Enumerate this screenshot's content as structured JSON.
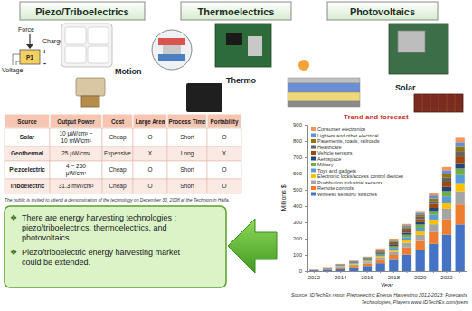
{
  "header": {
    "sections": [
      {
        "title": "Piezo/Triboelectrics"
      },
      {
        "title": "Thermoelectrics"
      },
      {
        "title": "Photovoltaics"
      }
    ]
  },
  "piezo_diagram": {
    "force": "Force",
    "charges": "Charges",
    "voltage": "Voltage",
    "element": "P1",
    "plus": "+",
    "minus": "-"
  },
  "image_labels": {
    "motion": "Motion",
    "thermo": "Thermo",
    "solar": "Solar"
  },
  "table": {
    "columns": [
      "Source",
      "Output Power",
      "Cost",
      "Large Area",
      "Process Time",
      "Portability"
    ],
    "rows": [
      [
        "Solar",
        [
          "10 μW/cm² ~",
          "10 mW/cm²"
        ],
        "Cheap",
        "O",
        "Short",
        "O"
      ],
      [
        "Geothermal",
        "25 μW/cm²",
        "Expensive",
        "X",
        "Long",
        "X"
      ],
      [
        "Piezoelectric",
        [
          "4 ~ 250",
          "μW/cm²"
        ],
        "Cheap",
        "O",
        "Short",
        "O"
      ],
      [
        "Triboelectric",
        "31.3 mW/cm²",
        "Cheap",
        "O",
        "Short",
        "O"
      ]
    ]
  },
  "note": "The public is invited to attend a demonstration of the technology on December 30, 2008 at the Technion in Haifa.",
  "callout": {
    "bullet": "❖",
    "items": [
      [
        "There are energy harvesting technologies :",
        "piezo/triboelectrics, thermoelectrics, and",
        "photovoltaics."
      ],
      [
        "Piezo/triboelectric energy harvesting market",
        "could be extended."
      ]
    ]
  },
  "chart_data": {
    "type": "bar",
    "stacked": true,
    "title": "Trend and forecast",
    "x_label": "Year",
    "y_label": "Millions $",
    "categories": [
      "2012",
      null,
      "2014",
      null,
      "2016",
      null,
      "2018",
      null,
      "2020",
      null,
      "2022",
      null
    ],
    "series": [
      {
        "name": "Wireless sensors/ switches",
        "color": "#4472c4",
        "values": [
          5,
          9,
          16,
          23,
          32,
          49,
          70,
          102,
          130,
          168,
          224,
          287
        ]
      },
      {
        "name": "Remote controls",
        "color": "#ed7d31",
        "values": [
          2,
          4,
          7,
          10,
          14,
          21,
          30,
          44,
          56,
          72,
          96,
          123
        ]
      },
      {
        "name": "Pushbutton industrial sensors",
        "color": "#a5a5a5",
        "values": [
          2,
          3,
          5,
          7,
          9,
          14,
          20,
          29,
          37,
          48,
          64,
          82
        ]
      },
      {
        "name": "Electronic locks/access control devices",
        "color": "#ffc000",
        "values": [
          1,
          1,
          3,
          4,
          5,
          8,
          12,
          17,
          22,
          29,
          38,
          49
        ]
      },
      {
        "name": "Toys and gadgets",
        "color": "#5b9bd5",
        "values": [
          1,
          1,
          3,
          4,
          5,
          8,
          12,
          17,
          22,
          29,
          38,
          49
        ]
      },
      {
        "name": "Military",
        "color": "#70ad47",
        "values": [
          1,
          1,
          2,
          3,
          5,
          7,
          10,
          15,
          19,
          24,
          32,
          41
        ]
      },
      {
        "name": "Aerospace",
        "color": "#264478",
        "values": [
          0,
          1,
          2,
          3,
          4,
          6,
          8,
          12,
          15,
          19,
          26,
          33
        ]
      },
      {
        "name": "Vehicle sensors",
        "color": "#9e480e",
        "values": [
          1,
          1,
          2,
          3,
          5,
          7,
          10,
          14,
          18,
          24,
          32,
          41
        ]
      },
      {
        "name": "Healthcare",
        "color": "#636363",
        "values": [
          0,
          1,
          2,
          3,
          4,
          6,
          8,
          12,
          15,
          19,
          26,
          33
        ]
      },
      {
        "name": "Pavements, roads, railroads",
        "color": "#997300",
        "values": [
          0,
          1,
          1,
          2,
          3,
          4,
          6,
          9,
          11,
          14,
          19,
          25
        ]
      },
      {
        "name": "Lighters and other electrical",
        "color": "#698ed0",
        "values": [
          2,
          1,
          1,
          2,
          2,
          5,
          8,
          11,
          14,
          20,
          25,
          30
        ]
      },
      {
        "name": "Consumer electronics",
        "color": "#f1975a",
        "values": [
          0,
          1,
          1,
          1,
          2,
          5,
          6,
          8,
          11,
          14,
          20,
          27
        ]
      }
    ],
    "ylim": [
      0,
      900
    ],
    "yticks": [
      0,
      100,
      200,
      300,
      400,
      500,
      600,
      700,
      800,
      900
    ],
    "grid": false,
    "legend": "upper-left"
  },
  "source": [
    "Source: IDTechEx report Piezoelectric Energy Harvesting 2012-2023: Forecasts,",
    "Technologies, Players www.IDTechEx.com/piezo"
  ]
}
